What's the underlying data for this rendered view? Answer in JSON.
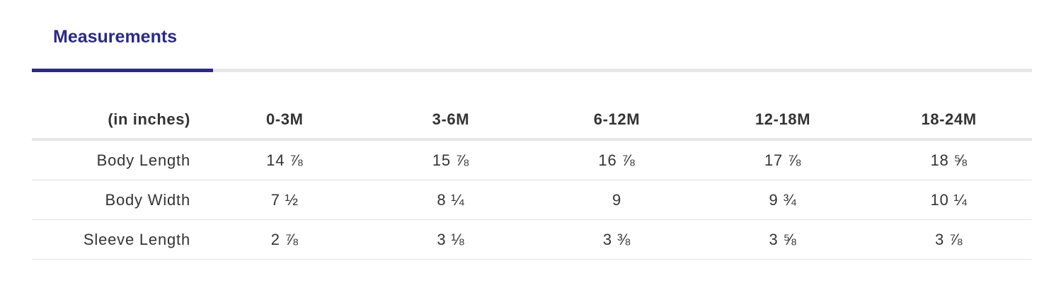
{
  "tabs": [
    {
      "label": "Measurements",
      "active": true
    }
  ],
  "colors": {
    "accent": "#2b2a86",
    "text": "#333333",
    "rule": "#e6e6e6"
  },
  "table": {
    "unit_header": "(in inches)",
    "columns": [
      "0-3M",
      "3-6M",
      "6-12M",
      "12-18M",
      "18-24M"
    ],
    "rows": [
      {
        "label": "Body Length",
        "values": [
          "14 ⅞",
          "15 ⅞",
          "16 ⅞",
          "17 ⅞",
          "18 ⅝"
        ]
      },
      {
        "label": "Body Width",
        "values": [
          "7 ½",
          "8 ¼",
          "9",
          "9 ¾",
          "10 ¼"
        ]
      },
      {
        "label": "Sleeve Length",
        "values": [
          "2 ⅞",
          "3 ⅛",
          "3 ⅜",
          "3 ⅝",
          "3 ⅞"
        ]
      }
    ]
  }
}
